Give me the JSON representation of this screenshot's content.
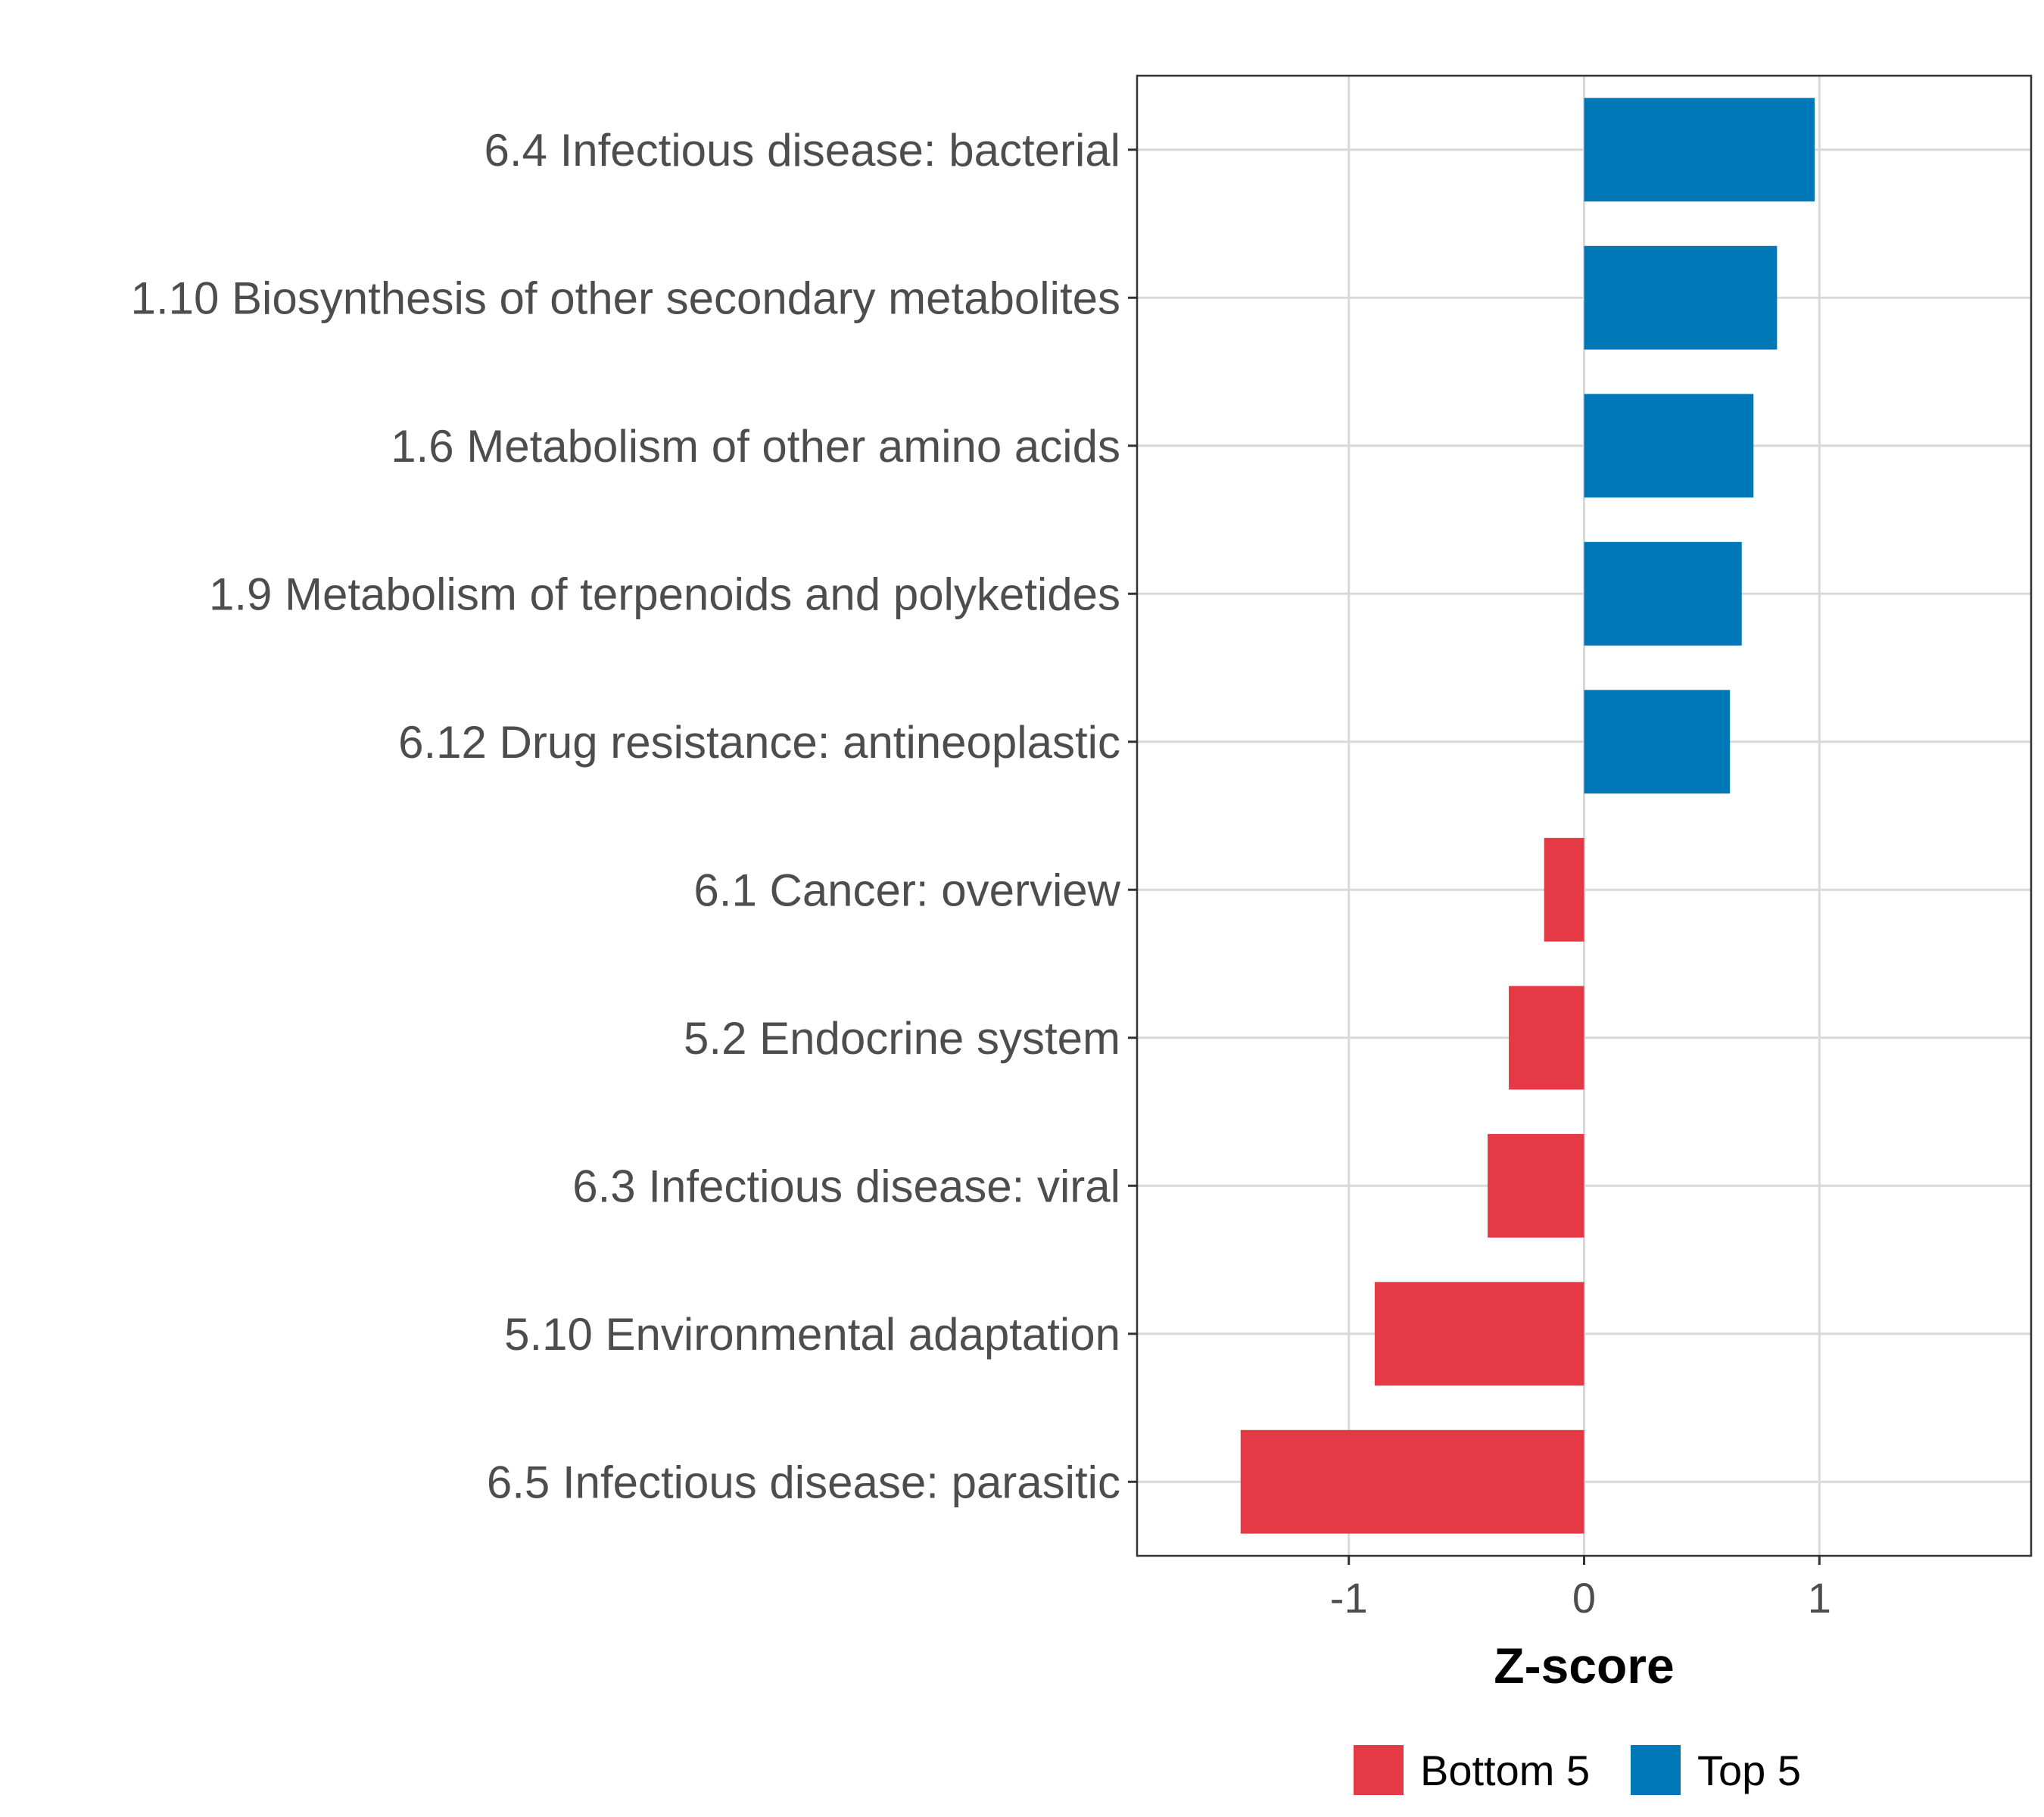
{
  "chart_data": {
    "type": "bar",
    "orientation": "horizontal",
    "title": "",
    "xlabel": "Z-score",
    "ylabel": "",
    "xlim": [
      -1.9,
      1.9
    ],
    "xticks": [
      -1,
      0,
      1
    ],
    "xtick_labels": [
      "-1",
      "0",
      "1"
    ],
    "grid": true,
    "legend_position": "bottom",
    "categories": [
      "6.4 Infectious disease: bacterial",
      "1.10 Biosynthesis of other secondary metabolites",
      "1.6 Metabolism of other amino acids",
      "1.9 Metabolism of terpenoids and polyketides",
      "6.12 Drug resistance: antineoplastic",
      "6.1 Cancer: overview",
      "5.2 Endocrine system",
      "6.3 Infectious disease: viral",
      "5.10 Environmental adaptation",
      "6.5 Infectious disease: parasitic"
    ],
    "values": [
      0.98,
      0.82,
      0.72,
      0.67,
      0.62,
      -0.17,
      -0.32,
      -0.41,
      -0.89,
      -1.46
    ],
    "groups": [
      "Top 5",
      "Top 5",
      "Top 5",
      "Top 5",
      "Top 5",
      "Bottom 5",
      "Bottom 5",
      "Bottom 5",
      "Bottom 5",
      "Bottom 5"
    ],
    "legend": [
      {
        "name": "Bottom 5",
        "color": "#e63946"
      },
      {
        "name": "Top 5",
        "color": "#0077b6"
      }
    ]
  }
}
